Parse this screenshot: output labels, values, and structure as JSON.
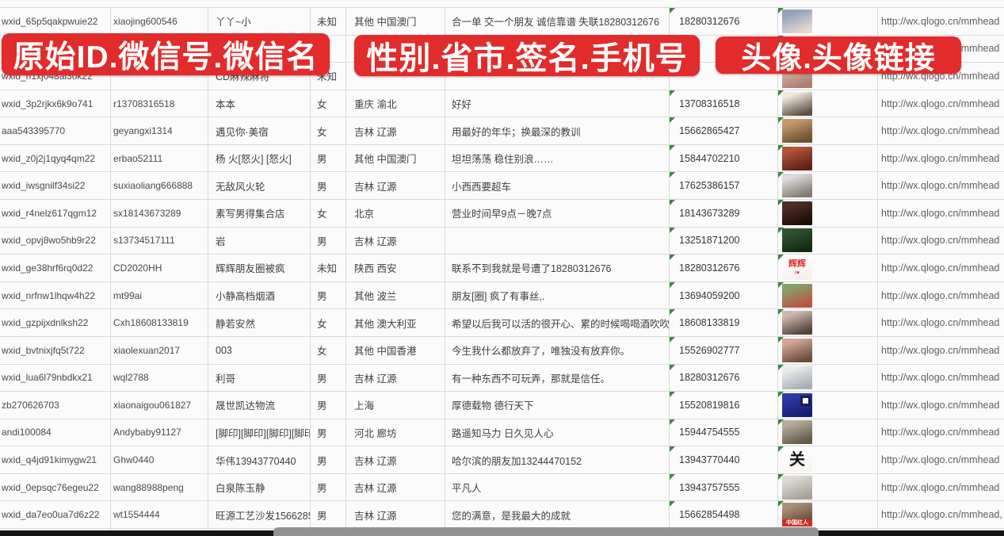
{
  "banners": [
    {
      "label": "原始ID.微信号.微信名"
    },
    {
      "label": "性别.省市.签名.手机号"
    },
    {
      "label": "头像.头像链接"
    }
  ],
  "colors": {
    "banner_red": "#e22b2b",
    "gridline": "#d9d9d9",
    "error_triangle_green": "#3c8a3f",
    "scrollbar_thumb": "#929292",
    "scrollbar_track": "#151515"
  },
  "avatar_link_text": "http://wx.qlogo.cn/mmhead",
  "rows": [
    {
      "wxid": "wxid_65p5qakpwuie22",
      "account": "xiaojing600546",
      "name": "丫丫~小",
      "gender": "未知",
      "region": "其他 中国澳门",
      "signature": "合一单 交一个朋友 诚信靠谱 失联18280312676",
      "phone": "18280312676",
      "link": "http://wx.qlogo.cn/mmhead",
      "avatar": {
        "desc": "woman-portrait-photo",
        "c1": "#8fa3bd",
        "c2": "#e6d8cf"
      }
    },
    {
      "wxid": "",
      "account": "",
      "name": "",
      "gender": "",
      "region": "",
      "signature": "",
      "phone": "5386",
      "link": "http://wx.qlogo.cn/mmhead",
      "phone_fragment": true,
      "gender_tri": true,
      "avatar": {
        "desc": "woman-portrait-photo",
        "c1": "#c3b2a5",
        "c2": "#7d6a5c"
      }
    },
    {
      "wxid": "wxid_h1xj048al3ok22",
      "account": "",
      "name": "CD麻辣麻将",
      "gender": "未知",
      "region": "",
      "signature": "",
      "phone": "",
      "link": "http://wx.qlogo.cn/mmhead",
      "avatar": {
        "desc": "woman-portrait-photo",
        "c1": "#d7b5ab",
        "c2": "#a67f70"
      }
    },
    {
      "wxid": "wxid_3p2rjkx6k9o741",
      "account": "r13708316518",
      "name": "本本",
      "gender": "女",
      "region": "重庆 渝北",
      "signature": "好好",
      "phone": "13708316518",
      "link": "http://wx.qlogo.cn/mmhead",
      "avatar": {
        "desc": "woman-white-dress-photo",
        "c1": "#efe7dc",
        "c2": "#5f5044"
      }
    },
    {
      "wxid": "aaa543395770",
      "account": "geyangxi1314",
      "name": "遇见你·美宿",
      "gender": "女",
      "region": "吉林 辽源",
      "signature": "用最好的年华；换最深的教训",
      "phone": "15662865427",
      "link": "http://wx.qlogo.cn/mmhead",
      "avatar": {
        "desc": "autumn-figure-photo",
        "c1": "#c49a6c",
        "c2": "#6f4f2f"
      }
    },
    {
      "wxid": "wxid_z0j2j1qyq4qm22",
      "account": "erbao52111",
      "name": "杨 火[怒火] [怒火]",
      "gender": "男",
      "region": "其他 中国澳门",
      "signature": "坦坦荡荡 稳住别浪……",
      "phone": "15844702210",
      "link": "http://wx.qlogo.cn/mmhead",
      "avatar": {
        "desc": "red-figurines-photo",
        "c1": "#b2543a",
        "c2": "#5f2014"
      }
    },
    {
      "wxid": "wxid_iwsgnilf34si22",
      "account": "suxiaoliang666888",
      "name": "无敌风火轮",
      "gender": "男",
      "region": "吉林 辽源",
      "signature": "小西西要超车",
      "phone": "17625386157",
      "link": "http://wx.qlogo.cn/mmhead",
      "avatar": {
        "desc": "boy-in-car-photo",
        "c1": "#dcdcdc",
        "c2": "#837b72"
      }
    },
    {
      "wxid": "wxid_r4nelz617qgm12",
      "account": "sx18143673289",
      "name": "素写男得集合店",
      "gender": "女",
      "region": "北京",
      "signature": "营业时间早9点－晚7点",
      "phone": "18143673289",
      "link": "http://wx.qlogo.cn/mmhead",
      "avatar": {
        "desc": "dark-storefront-photo",
        "c1": "#4f2f27",
        "c2": "#1d0c08"
      }
    },
    {
      "wxid": "wxid_opvj8wo5hb9r22",
      "account": "s13734517111",
      "name": "岩",
      "gender": "男",
      "region": "吉林 辽源",
      "signature": "",
      "phone": "13251871200",
      "link": "http://wx.qlogo.cn/mmhead",
      "avatar": {
        "desc": "green-sign-photo",
        "c1": "#2f5430",
        "c2": "#122b12"
      }
    },
    {
      "wxid": "wxid_ge38hrf6rq0d22",
      "account": "CD2020HH",
      "name": "辉辉朋友圈被疯",
      "gender": "未知",
      "region": "陕西 西安",
      "signature": "联系不到我就是号遭了18280312676",
      "phone": "18280312676",
      "link": "http://wx.qlogo.cn/mmhead",
      "avatar": {
        "desc": "red-text-logo",
        "c1": "#ffffff",
        "c2": "#f4f0ec",
        "text": "辉辉",
        "text_color": "#e03030",
        "text_size": 11,
        "sub": "I♥",
        "sub_color": "#e03030"
      }
    },
    {
      "wxid": "wxid_nrfnw1lhqw4h22",
      "account": "mt99ai",
      "name": "小静高档烟酒",
      "gender": "男",
      "region": "其他 波兰",
      "signature": "朋友[圈] 疯了有事丝,.",
      "phone": "13694059200",
      "link": "http://wx.qlogo.cn/mmhead",
      "avatar": {
        "desc": "woman-sunglasses-photo",
        "c1": "#86a06c",
        "c2": "#b85444"
      }
    },
    {
      "wxid": "wxid_gzpijxdnlksh22",
      "account": "Cxh18608133819",
      "name": "静若安然",
      "gender": "女",
      "region": "其他 澳大利亚",
      "signature": "希望以后我可以活的很开心、累的时候喝喝酒吹吹[",
      "phone": "18608133819",
      "link": "http://wx.qlogo.cn/mmhead",
      "avatar": {
        "desc": "woman-selfie-photo",
        "c1": "#cbb8ae",
        "c2": "#54433b"
      }
    },
    {
      "wxid": "wxid_bvtnixjfq5t722",
      "account": "xiaolexuan2017",
      "name": "003",
      "gender": "女",
      "region": "其他 中国香港",
      "signature": "今生我什么都放弃了，唯独没有放弃你。",
      "phone": "15526902777",
      "link": "http://wx.qlogo.cn/mmhead",
      "avatar": {
        "desc": "woman-selfie-photo",
        "c1": "#d2a794",
        "c2": "#6d4c3a"
      }
    },
    {
      "wxid": "wxid_lua6l79nbdkx21",
      "account": "wql2788",
      "name": "利哥",
      "gender": "男",
      "region": "吉林 辽源",
      "signature": "有一种东西不可玩弄，那就是信任。",
      "phone": "18280312676",
      "link": "http://wx.qlogo.cn/mmhead",
      "avatar": {
        "desc": "person-white-hat-photo",
        "c1": "#ececea",
        "c2": "#a7afb6"
      }
    },
    {
      "wxid": "zb270626703",
      "account": "xiaonaigou061827",
      "name": "晟世凯达物流",
      "gender": "男",
      "region": "上海",
      "signature": "厚德载物 德行天下",
      "phone": "15520819816",
      "link": "http://wx.qlogo.cn/mmhead",
      "avatar": {
        "desc": "blue-qr-logo",
        "c1": "#2c3aa8",
        "c2": "#141e6e",
        "qr": true
      }
    },
    {
      "wxid": "andi100084",
      "account": "Andybaby91127",
      "name": "[脚印][脚印][脚印][脚印",
      "gender": "男",
      "region": "河北 廊坊",
      "signature": "路遥知马力 日久见人心",
      "phone": "15944754555",
      "link": "http://wx.qlogo.cn/mmhead",
      "avatar": {
        "desc": "people-on-steps-photo",
        "c1": "#b5ac9c",
        "c2": "#635a4c"
      }
    },
    {
      "wxid": "wxid_q4jd91kimygw21",
      "account": "Ghw0440",
      "name": "华伟13943770440",
      "gender": "男",
      "region": "吉林 辽源",
      "signature": "哈尔滨的朋友加13244470152",
      "phone": "13943770440",
      "link": "http://wx.qlogo.cn/mmhead",
      "avatar": {
        "desc": "calligraphy-logo",
        "c1": "#ffffff",
        "c2": "#f6f4f0",
        "text": "关",
        "text_color": "#161616",
        "text_size": 20
      }
    },
    {
      "wxid": "wxid_0epsqc76egeu22",
      "account": "wang88988peng",
      "name": "白泉陈玉静",
      "gender": "男",
      "region": "吉林 辽源",
      "signature": "平凡人",
      "phone": "13943757555",
      "link": "http://wx.qlogo.cn/mmhead",
      "avatar": {
        "desc": "beach-person-photo",
        "c1": "#dcdad2",
        "c2": "#a3a199"
      }
    },
    {
      "wxid": "wxid_da7eo0ua7d6z22",
      "account": "wt1554444",
      "name": "旺源工艺沙发15662854",
      "gender": "男",
      "region": "吉林 辽源",
      "signature": "您的满意，是我最大的成就",
      "phone": "15662854498",
      "link": "http://wx.qlogo.cn/mmhead,",
      "avatar": {
        "desc": "photo-with-red-strip",
        "c1": "#a98f74",
        "c2": "#5e462e",
        "strip": "中国红人"
      }
    }
  ],
  "partial_row": {
    "avatar": {
      "desc": "cartoon-avatar",
      "c1": "#6b7bd0",
      "c2": "#e7c9a6"
    }
  }
}
